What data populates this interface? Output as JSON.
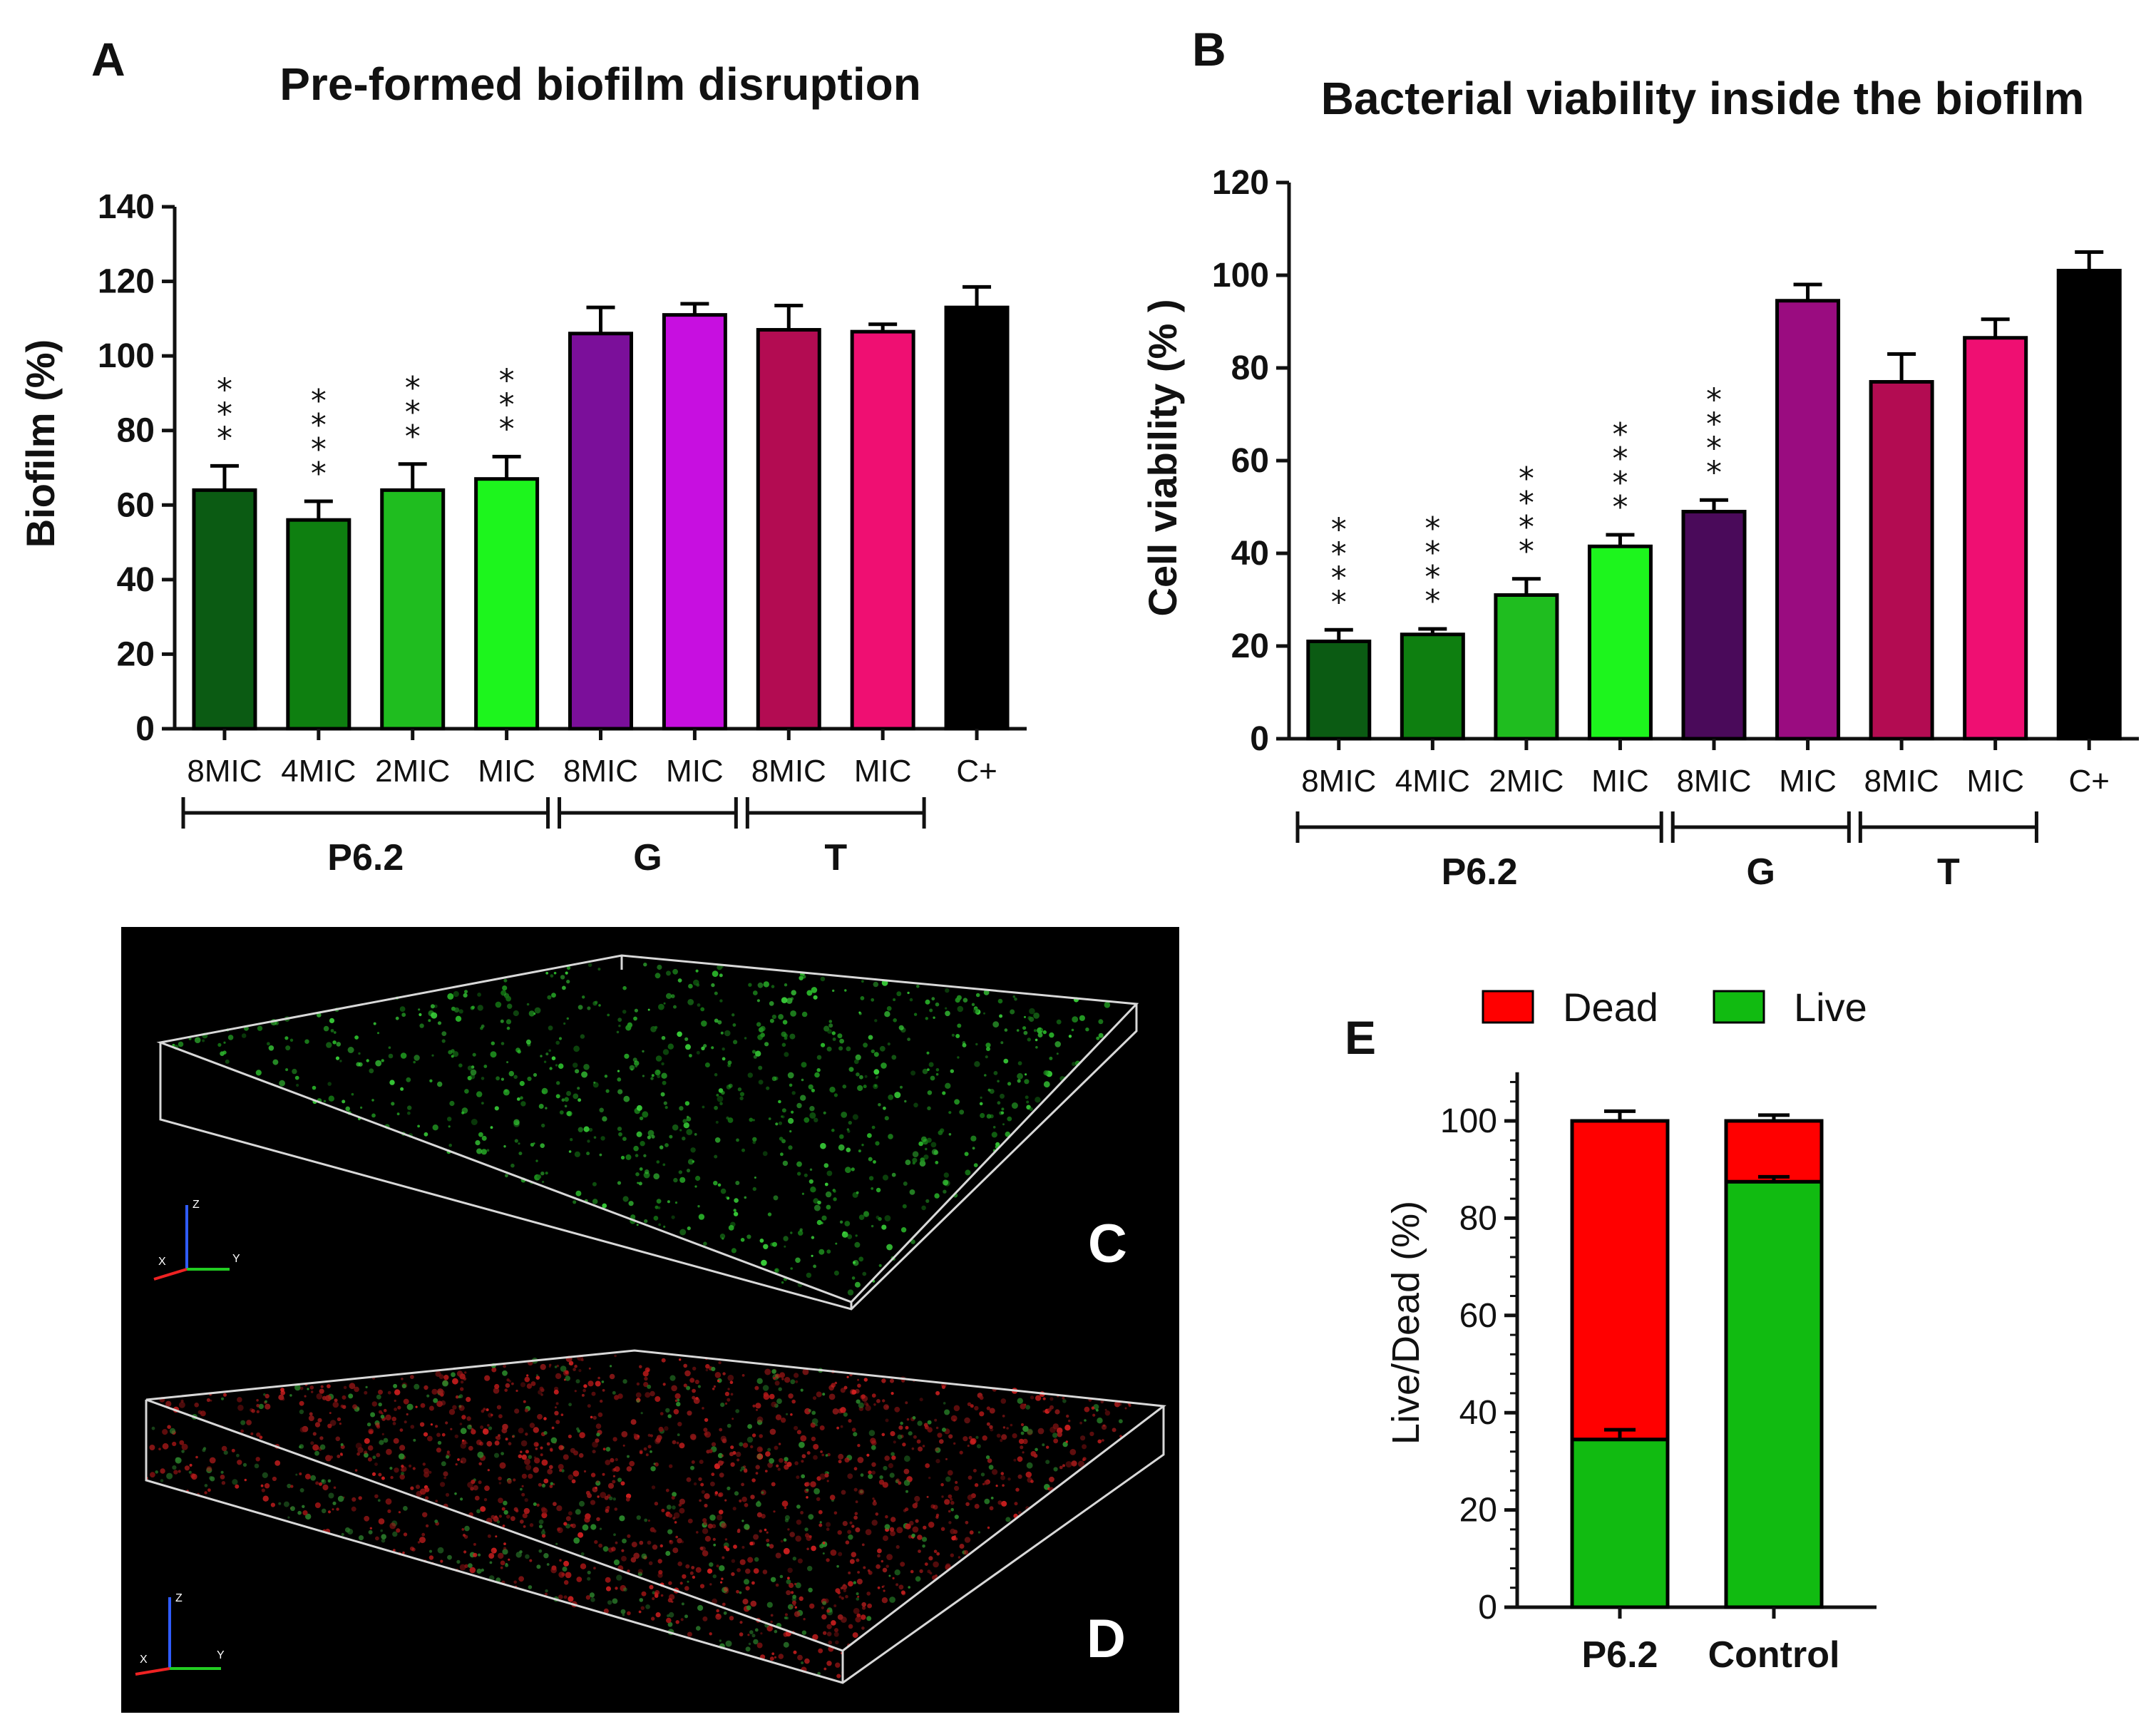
{
  "panels": {
    "A": {
      "letter": "A"
    },
    "B": {
      "letter": "B"
    },
    "C": {
      "letter": "C"
    },
    "D": {
      "letter": "D"
    },
    "E": {
      "letter": "E"
    }
  },
  "colors": {
    "bars": [
      "#0b5b13",
      "#0e7f10",
      "#1fbd1f",
      "#1df51d",
      "#7b0f9a",
      "#c70fe0",
      "#b30c52",
      "#ef0f72",
      "#000000"
    ],
    "barsB": [
      "#0b5b13",
      "#0e7f10",
      "#1fbd1f",
      "#1df51d",
      "#4a0a5a",
      "#9a0c80",
      "#b30c52",
      "#ef0f72",
      "#000000"
    ],
    "dead": "#ff0000",
    "live": "#11bb11"
  },
  "chart_data": [
    {
      "id": "A",
      "type": "bar",
      "title": "Pre-formed biofilm disruption",
      "xlabel": "",
      "ylabel": "Biofilm (%)",
      "ylim": [
        0,
        140
      ],
      "yticks": [
        0,
        20,
        40,
        60,
        80,
        100,
        120,
        140
      ],
      "categories": [
        "8MIC",
        "4MIC",
        "2MIC",
        "MIC",
        "8MIC",
        "MIC",
        "8MIC",
        "MIC",
        "C+"
      ],
      "values": [
        64,
        56,
        64,
        67,
        106,
        111,
        107,
        106.5,
        113
      ],
      "errors": [
        6.5,
        5,
        7,
        6,
        7,
        3,
        6.5,
        2,
        5.5
      ],
      "significance": [
        "***",
        "****",
        "***",
        "***",
        "",
        "",
        "",
        "",
        ""
      ],
      "groups": [
        {
          "label": "P6.2",
          "from": 0,
          "to": 3
        },
        {
          "label": "G",
          "from": 4,
          "to": 5
        },
        {
          "label": "T",
          "from": 6,
          "to": 7
        }
      ]
    },
    {
      "id": "B",
      "type": "bar",
      "title": "Bacterial viability inside the biofilm",
      "xlabel": "",
      "ylabel": "Cell viability (% )",
      "ylim": [
        0,
        120
      ],
      "yticks": [
        0,
        20,
        40,
        60,
        80,
        100,
        120
      ],
      "categories": [
        "8MIC",
        "4MIC",
        "2MIC",
        "MIC",
        "8MIC",
        "MIC",
        "8MIC",
        "MIC",
        "C+"
      ],
      "values": [
        21,
        22.5,
        31,
        41.5,
        49,
        94.5,
        77,
        86.5,
        101
      ],
      "errors": [
        2.5,
        1.2,
        3.5,
        2.5,
        2.5,
        3.5,
        6,
        4,
        4
      ],
      "significance": [
        "****",
        "****",
        "****",
        "****",
        "****",
        "",
        "",
        "",
        ""
      ],
      "groups": [
        {
          "label": "P6.2",
          "from": 0,
          "to": 3
        },
        {
          "label": "G",
          "from": 4,
          "to": 5
        },
        {
          "label": "T",
          "from": 6,
          "to": 7
        }
      ]
    },
    {
      "id": "E",
      "type": "bar",
      "stacked": true,
      "title": "",
      "xlabel": "",
      "ylabel": "Live/Dead (%)",
      "ylim": [
        0,
        110
      ],
      "yticks": [
        0,
        20,
        40,
        60,
        80,
        100
      ],
      "categories": [
        "P6.2",
        "Control"
      ],
      "series": [
        {
          "name": "Live",
          "values": [
            34.5,
            87.5
          ],
          "errors": [
            2,
            1
          ]
        },
        {
          "name": "Dead",
          "values": [
            65.5,
            12.5
          ],
          "errors": [
            2,
            1.2
          ]
        }
      ],
      "legend": [
        "Dead",
        "Live"
      ],
      "legend_position": "top"
    }
  ],
  "images": {
    "C": {
      "axes": [
        "Z",
        "X",
        "Y"
      ],
      "tint": "green"
    },
    "D": {
      "axes": [
        "Z",
        "X",
        "Y"
      ],
      "tint": "red-green"
    }
  }
}
